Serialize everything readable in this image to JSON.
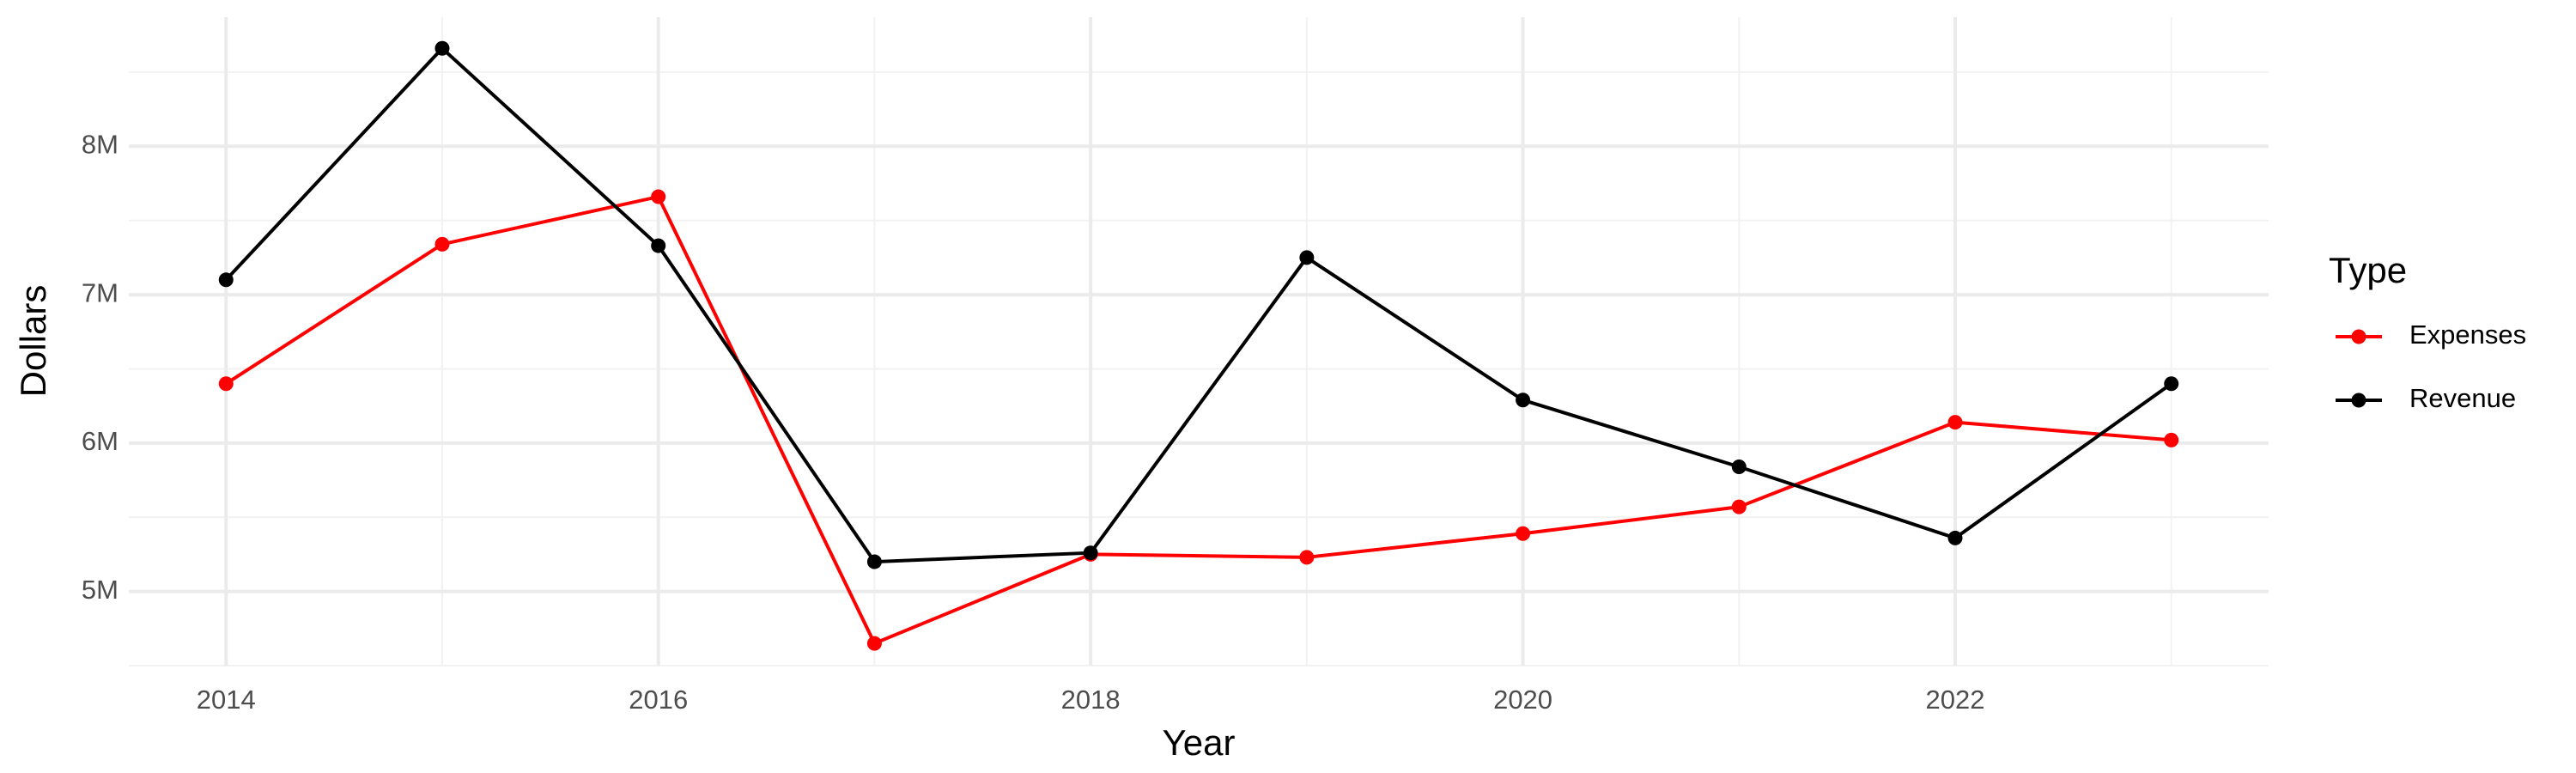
{
  "chart_data": {
    "type": "line",
    "x_label": "Year",
    "y_label": "Dollars",
    "legend_title": "Type",
    "legend_position": "right",
    "grid": true,
    "x": [
      2014,
      2015,
      2016,
      2017,
      2018,
      2019,
      2020,
      2021,
      2022,
      2023
    ],
    "series": [
      {
        "name": "Expenses",
        "color": "#ff0000",
        "values": [
          6400000,
          7340000,
          7660000,
          4650000,
          5250000,
          5230000,
          5390000,
          5570000,
          6140000,
          6020000
        ]
      },
      {
        "name": "Revenue",
        "color": "#000000",
        "values": [
          7100000,
          8660000,
          7330000,
          5200000,
          5260000,
          7250000,
          6290000,
          5840000,
          5360000,
          6400000
        ]
      }
    ],
    "xlim": [
      2013.55,
      2023.45
    ],
    "xticks": [
      2014,
      2016,
      2018,
      2020,
      2022
    ],
    "ylim": [
      4500000,
      8870000
    ],
    "yticks": [
      {
        "value": 5000000,
        "label": "5M"
      },
      {
        "value": 6000000,
        "label": "6M"
      },
      {
        "value": 7000000,
        "label": "7M"
      },
      {
        "value": 8000000,
        "label": "8M"
      }
    ]
  }
}
